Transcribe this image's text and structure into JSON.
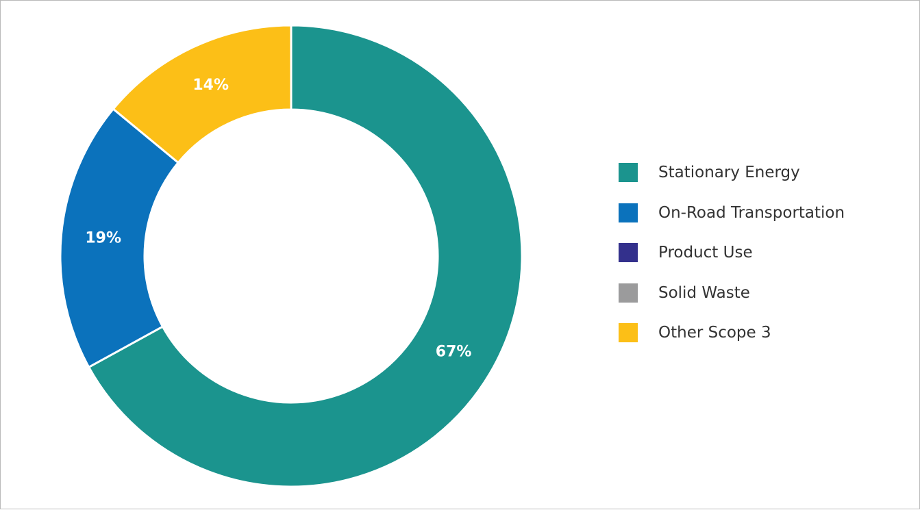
{
  "chart_data": {
    "type": "pie",
    "variant": "donut",
    "start": "top",
    "direction": "clockwise",
    "legend_position": "right",
    "series": [
      {
        "name": "Stationary Energy",
        "value": 67,
        "label": "67%",
        "color": "#1b948e"
      },
      {
        "name": "On-Road Transportation",
        "value": 19,
        "label": "19%",
        "color": "#0b72bc"
      },
      {
        "name": "Product Use",
        "value": 0,
        "label": "",
        "color": "#33308c"
      },
      {
        "name": "Solid Waste",
        "value": 0,
        "label": "",
        "color": "#9b9b9c"
      },
      {
        "name": "Other Scope 3",
        "value": 14,
        "label": "14%",
        "color": "#fcbf17"
      }
    ]
  }
}
